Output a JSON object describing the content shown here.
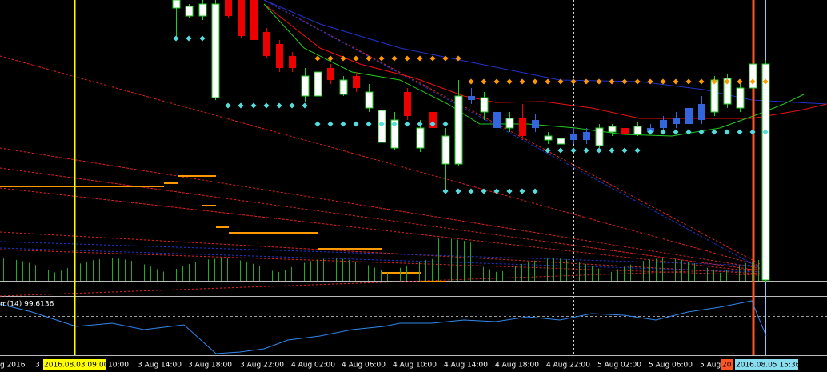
{
  "time_axis": {
    "labels": [
      "g 2016",
      "3",
      "2016.08.03 09:00",
      "10:00",
      "3 Aug 14:00",
      "3 Aug 18:00",
      "3 Aug 22:00",
      "4 Aug 02:00",
      "4 Aug 06:00",
      "4 Aug 10:00",
      "4 Aug 14:00",
      "4 Aug 18:00",
      "4 Aug 22:00",
      "5 Aug 02:00",
      "5 Aug 06:00",
      "5 Aug 10",
      "20",
      "2016.08.05 15:36"
    ]
  },
  "indicator": {
    "label": "m(14) 99.6136"
  }
}
